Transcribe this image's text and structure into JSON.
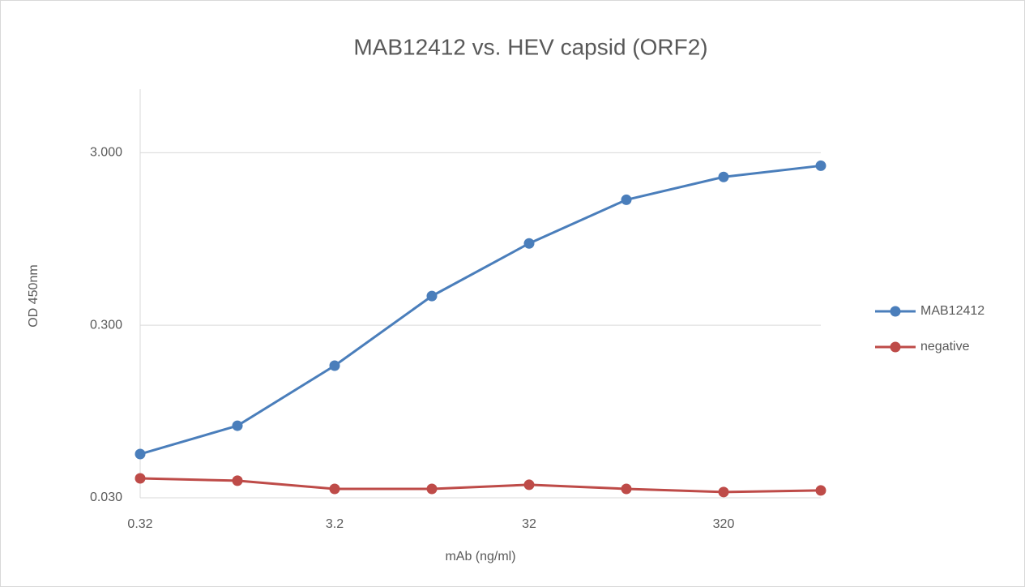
{
  "chart_data": {
    "type": "line",
    "title": "MAB12412 vs. HEV capsid (ORF2)",
    "x_label": "mAb (ng/ml)",
    "y_label": "OD 450nm",
    "categories": [
      "0.32",
      null,
      "3.2",
      null,
      "32",
      null,
      "320",
      null
    ],
    "series": [
      {
        "name": "MAB12412",
        "color": "#4a7ebb",
        "values": [
          0.0538,
          0.0785,
          0.175,
          0.443,
          0.894,
          1.6,
          2.17,
          2.52
        ]
      },
      {
        "name": "negative",
        "color": "#be4b48",
        "values": [
          0.0389,
          0.0377,
          0.0338,
          0.0338,
          0.0357,
          0.0338,
          0.0324,
          0.0331
        ]
      }
    ],
    "ylim": [
      0.03,
      7
    ],
    "yticks": [
      {
        "value": 0.03,
        "label": "0.030"
      },
      {
        "value": 0.3,
        "label": "0.300"
      },
      {
        "value": 3,
        "label": "3.000"
      }
    ],
    "ylog": true,
    "grid": true,
    "legend": "right"
  }
}
